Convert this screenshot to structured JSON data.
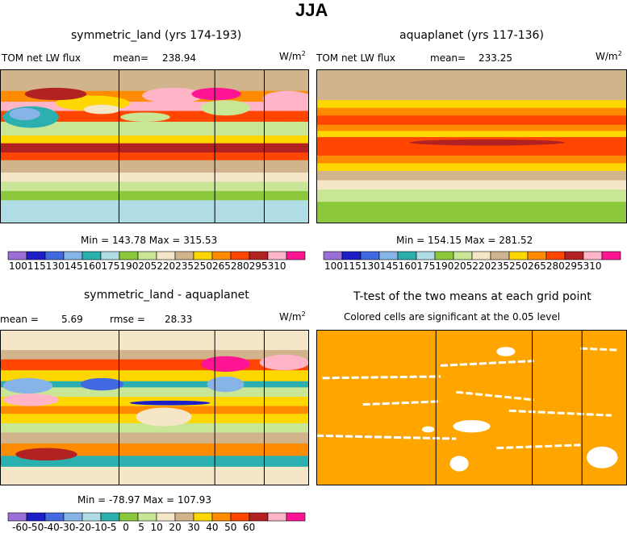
{
  "figure_title": "JJA",
  "chart_data": [
    {
      "type": "heatmap",
      "title": "symmetric_land (yrs 174-193)",
      "variable": "TOM net LW flux",
      "mean_label": "mean=",
      "mean": "238.94",
      "units": "W/m",
      "units_sup": "2",
      "min_max": "Min = 143.78 Max = 315.53",
      "min": 143.78,
      "max": 315.53,
      "colorbar_levels": [
        "100",
        "115",
        "130",
        "145",
        "160",
        "175",
        "190",
        "205",
        "220",
        "235",
        "250",
        "265",
        "280",
        "295",
        "310"
      ],
      "colorbar_text": "100115130145160175190205220235250265280295310",
      "rows": [
        {
          "top": 0.0,
          "h": 0.14,
          "value": 225
        },
        {
          "top": 0.14,
          "h": 0.07,
          "value": 255
        },
        {
          "top": 0.21,
          "h": 0.06,
          "value": 295
        },
        {
          "top": 0.27,
          "h": 0.07,
          "value": 270
        },
        {
          "top": 0.34,
          "h": 0.09,
          "value": 200
        },
        {
          "top": 0.43,
          "h": 0.05,
          "value": 240
        },
        {
          "top": 0.48,
          "h": 0.06,
          "value": 280
        },
        {
          "top": 0.54,
          "h": 0.05,
          "value": 265
        },
        {
          "top": 0.59,
          "h": 0.08,
          "value": 225
        },
        {
          "top": 0.67,
          "h": 0.06,
          "value": 205
        },
        {
          "top": 0.73,
          "h": 0.06,
          "value": 190
        },
        {
          "top": 0.79,
          "h": 0.06,
          "value": 175
        },
        {
          "top": 0.85,
          "h": 0.15,
          "value": 160
        }
      ],
      "blobs": [
        {
          "cx": 0.1,
          "cy": 0.31,
          "rx": 0.09,
          "ry": 0.07,
          "value": 145
        },
        {
          "cx": 0.08,
          "cy": 0.29,
          "rx": 0.05,
          "ry": 0.04,
          "value": 130
        },
        {
          "cx": 0.3,
          "cy": 0.22,
          "rx": 0.12,
          "ry": 0.05,
          "value": 235
        },
        {
          "cx": 0.33,
          "cy": 0.26,
          "rx": 0.06,
          "ry": 0.03,
          "value": 205
        },
        {
          "cx": 0.56,
          "cy": 0.17,
          "rx": 0.1,
          "ry": 0.05,
          "value": 295
        },
        {
          "cx": 0.7,
          "cy": 0.16,
          "rx": 0.08,
          "ry": 0.04,
          "value": 310
        },
        {
          "cx": 0.73,
          "cy": 0.25,
          "rx": 0.08,
          "ry": 0.05,
          "value": 190
        },
        {
          "cx": 0.93,
          "cy": 0.19,
          "rx": 0.08,
          "ry": 0.05,
          "value": 295
        },
        {
          "cx": 0.93,
          "cy": 0.3,
          "rx": 0.07,
          "ry": 0.03,
          "value": 265
        },
        {
          "cx": 0.18,
          "cy": 0.16,
          "rx": 0.1,
          "ry": 0.04,
          "value": 280
        },
        {
          "cx": 0.47,
          "cy": 0.31,
          "rx": 0.08,
          "ry": 0.03,
          "value": 190
        }
      ],
      "cont_x": [
        0.385,
        0.695,
        0.855
      ]
    },
    {
      "type": "heatmap",
      "title": "aquaplanet (yrs 117-136)",
      "variable": "TOM net LW flux",
      "mean_label": "mean=",
      "mean": "233.25",
      "units": "W/m",
      "units_sup": "2",
      "min_max": "Min = 154.15 Max = 281.52",
      "min": 154.15,
      "max": 281.52,
      "colorbar_levels": [
        "100",
        "115",
        "130",
        "145",
        "160",
        "175",
        "190",
        "205",
        "220",
        "235",
        "250",
        "265",
        "280",
        "295",
        "310"
      ],
      "colorbar_text": "100115130145160175190205220235250265280295310",
      "rows": [
        {
          "top": 0.0,
          "h": 0.2,
          "value": 225
        },
        {
          "top": 0.2,
          "h": 0.05,
          "value": 235
        },
        {
          "top": 0.25,
          "h": 0.05,
          "value": 250
        },
        {
          "top": 0.3,
          "h": 0.06,
          "value": 265
        },
        {
          "top": 0.36,
          "h": 0.04,
          "value": 250
        },
        {
          "top": 0.4,
          "h": 0.04,
          "value": 235
        },
        {
          "top": 0.44,
          "h": 0.07,
          "value": 265
        },
        {
          "top": 0.51,
          "h": 0.05,
          "value": 265
        },
        {
          "top": 0.56,
          "h": 0.05,
          "value": 250
        },
        {
          "top": 0.61,
          "h": 0.05,
          "value": 235
        },
        {
          "top": 0.66,
          "h": 0.06,
          "value": 220
        },
        {
          "top": 0.72,
          "h": 0.06,
          "value": 205
        },
        {
          "top": 0.78,
          "h": 0.08,
          "value": 190
        },
        {
          "top": 0.86,
          "h": 0.14,
          "value": 175
        }
      ],
      "blobs": [
        {
          "cx": 0.55,
          "cy": 0.475,
          "rx": 0.25,
          "ry": 0.02,
          "value": 280
        }
      ],
      "cont_x": []
    },
    {
      "type": "heatmap",
      "title": "symmetric_land - aquaplanet",
      "mean_label": "mean =",
      "mean": "5.69",
      "rmse_label": "rmse =",
      "rmse": "28.33",
      "units": "W/m",
      "units_sup": "2",
      "min_max": "Min = -78.97 Max = 107.93",
      "min": -78.97,
      "max": 107.93,
      "colorbar_levels": [
        "-60",
        "-50",
        "-40",
        "-30",
        "-20",
        "-10",
        "-5",
        "0",
        "5",
        "10",
        "20",
        "30",
        "40",
        "50",
        "60"
      ],
      "colorbar_text": "-60-50-40-30-20-10-5  0   5  10  20  30  40  50  60",
      "rows": [
        {
          "top": 0.0,
          "h": 0.13,
          "value": 0
        },
        {
          "top": 0.13,
          "h": 0.06,
          "value": 8
        },
        {
          "top": 0.19,
          "h": 0.07,
          "value": 35
        },
        {
          "top": 0.26,
          "h": 0.07,
          "value": 15
        },
        {
          "top": 0.33,
          "h": 0.04,
          "value": -15
        },
        {
          "top": 0.37,
          "h": 0.06,
          "value": -3
        },
        {
          "top": 0.43,
          "h": 0.06,
          "value": 12
        },
        {
          "top": 0.49,
          "h": 0.05,
          "value": 25
        },
        {
          "top": 0.54,
          "h": 0.06,
          "value": 12
        },
        {
          "top": 0.6,
          "h": 0.06,
          "value": -3
        },
        {
          "top": 0.66,
          "h": 0.07,
          "value": 8
        },
        {
          "top": 0.73,
          "h": 0.08,
          "value": 25
        },
        {
          "top": 0.81,
          "h": 0.07,
          "value": -15
        },
        {
          "top": 0.88,
          "h": 0.12,
          "value": 0
        }
      ],
      "blobs": [
        {
          "cx": 0.09,
          "cy": 0.36,
          "rx": 0.08,
          "ry": 0.05,
          "value": -40
        },
        {
          "cx": 0.33,
          "cy": 0.35,
          "rx": 0.07,
          "ry": 0.04,
          "value": -50
        },
        {
          "cx": 0.73,
          "cy": 0.35,
          "rx": 0.06,
          "ry": 0.05,
          "value": -35
        },
        {
          "cx": 0.1,
          "cy": 0.45,
          "rx": 0.09,
          "ry": 0.04,
          "value": 50
        },
        {
          "cx": 0.73,
          "cy": 0.22,
          "rx": 0.08,
          "ry": 0.05,
          "value": 60
        },
        {
          "cx": 0.92,
          "cy": 0.21,
          "rx": 0.08,
          "ry": 0.05,
          "value": 50
        },
        {
          "cx": 0.55,
          "cy": 0.47,
          "rx": 0.13,
          "ry": 0.015,
          "value": -60
        },
        {
          "cx": 0.53,
          "cy": 0.56,
          "rx": 0.09,
          "ry": 0.06,
          "value": 0
        },
        {
          "cx": 0.15,
          "cy": 0.8,
          "rx": 0.1,
          "ry": 0.04,
          "value": 40
        }
      ],
      "cont_x": [
        0.385,
        0.695,
        0.855
      ]
    },
    {
      "type": "heatmap",
      "title": "T-test of the two means at each grid point",
      "subtitle": "Colored cells are significant at the 0.05 level",
      "fill_color": "#FFA500",
      "nonsignificant_color": "#FFFFFF",
      "white_streaks": [
        {
          "x1": 0.02,
          "y1": 0.31,
          "x2": 0.4,
          "y2": 0.3
        },
        {
          "x1": 0.4,
          "y1": 0.23,
          "x2": 0.7,
          "y2": 0.2
        },
        {
          "x1": 0.45,
          "y1": 0.4,
          "x2": 0.7,
          "y2": 0.45
        },
        {
          "x1": 0.0,
          "y1": 0.68,
          "x2": 0.45,
          "y2": 0.7
        },
        {
          "x1": 0.58,
          "y1": 0.76,
          "x2": 0.85,
          "y2": 0.74
        },
        {
          "x1": 0.15,
          "y1": 0.48,
          "x2": 0.4,
          "y2": 0.46
        },
        {
          "x1": 0.85,
          "y1": 0.12,
          "x2": 0.97,
          "y2": 0.13
        },
        {
          "x1": 0.62,
          "y1": 0.52,
          "x2": 0.95,
          "y2": 0.55
        }
      ],
      "white_blobs": [
        {
          "cx": 0.5,
          "cy": 0.62,
          "rx": 0.06,
          "ry": 0.04
        },
        {
          "cx": 0.46,
          "cy": 0.86,
          "rx": 0.03,
          "ry": 0.05
        },
        {
          "cx": 0.92,
          "cy": 0.82,
          "rx": 0.05,
          "ry": 0.07
        },
        {
          "cx": 0.61,
          "cy": 0.14,
          "rx": 0.03,
          "ry": 0.03
        },
        {
          "cx": 0.36,
          "cy": 0.64,
          "rx": 0.02,
          "ry": 0.02
        }
      ],
      "cont_x": [
        0.385,
        0.695,
        0.855
      ]
    }
  ],
  "palettes": {
    "abs": [
      "#9B6FD8",
      "#1E1EC8",
      "#4169E1",
      "#87B4E6",
      "#2BAFAF",
      "#B0DCE6",
      "#8CC83C",
      "#C8E696",
      "#F5E6C8",
      "#D2B48C",
      "#FFD700",
      "#FF8C00",
      "#FF4500",
      "#B22222",
      "#FFB4C8",
      "#FF1493"
    ],
    "diff": [
      "#9B6FD8",
      "#1E1EC8",
      "#4169E1",
      "#87B4E6",
      "#B0DCE6",
      "#2BAFAF",
      "#8CC83C",
      "#C8E696",
      "#F5E6C8",
      "#D2B48C",
      "#FFD700",
      "#FF8C00",
      "#FF4500",
      "#B22222",
      "#FFB4C8",
      "#FF1493"
    ]
  }
}
